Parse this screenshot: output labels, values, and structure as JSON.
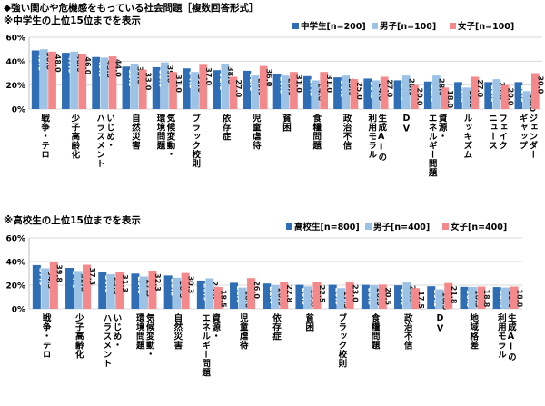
{
  "title": "◆強い関心や危機感をもっている社会問題［複数回答形式］",
  "colors": {
    "total": "#2f6eb5",
    "male": "#9cc3e6",
    "female": "#f4898c"
  },
  "chart_data": [
    {
      "type": "bar",
      "subtitle": "※中学生の上位15位までを表示",
      "categories": [
        "戦争・テロ",
        "少子高齢化",
        "いじめ・ハラスメント",
        "自然災害",
        "気候変動・環境問題",
        "ブラック校則",
        "依存症",
        "児童虐待",
        "貧困",
        "食糧問題",
        "政治不信",
        "生成AIの利用モラル",
        "DV",
        "資源・エネルギー問題",
        "ルッキズム",
        "フェイクニュース",
        "ジェンダーギャップ"
      ],
      "category_lines": [
        [
          "戦争・テロ"
        ],
        [
          "少子高齢化"
        ],
        [
          "いじめ・",
          "ハラスメント"
        ],
        [
          "自然災害"
        ],
        [
          "気候変動・",
          "環境問題"
        ],
        [
          "ブラック校則"
        ],
        [
          "依存症"
        ],
        [
          "児童虐待"
        ],
        [
          "貧困"
        ],
        [
          "食糧問題"
        ],
        [
          "政治不信"
        ],
        [
          "生成AIの",
          "利用モラル"
        ],
        [
          "DV"
        ],
        [
          "資源・",
          "エネルギー問題"
        ],
        [
          "ルッキズム"
        ],
        [
          "フェイク",
          "ニュース"
        ],
        [
          "ジェンダー",
          "ギャップ"
        ]
      ],
      "series": [
        {
          "name": "中学生[n=200]",
          "values": [
            49.0,
            47.0,
            43.5,
            35.5,
            35.0,
            34.0,
            32.5,
            32.0,
            29.5,
            27.5,
            26.5,
            25.5,
            24.0,
            23.0,
            22.5,
            22.5,
            22.5
          ]
        },
        {
          "name": "男子[n=100]",
          "values": [
            50.0,
            48.0,
            43.0,
            38.0,
            39.0,
            31.0,
            38.0,
            28.0,
            28.0,
            24.0,
            28.0,
            24.0,
            28.0,
            28.0,
            18.0,
            25.0,
            15.0
          ]
        },
        {
          "name": "女子[n=100]",
          "values": [
            48.0,
            46.0,
            44.0,
            33.0,
            31.0,
            37.0,
            27.0,
            36.0,
            31.0,
            31.0,
            25.0,
            27.0,
            20.0,
            18.0,
            27.0,
            20.0,
            30.0
          ]
        }
      ],
      "ylim": [
        0,
        60
      ],
      "yticks": [
        "0%",
        "20%",
        "40%",
        "60%"
      ],
      "legend": "top-right"
    },
    {
      "type": "bar",
      "subtitle": "※高校生の上位15位までを表示",
      "categories": [
        "戦争・テロ",
        "少子高齢化",
        "いじめ・ハラスメント",
        "気候変動・環境問題",
        "自然災害",
        "資源・エネルギー問題",
        "児童虐待",
        "依存症",
        "貧困",
        "ブラック校則",
        "食糧問題",
        "政治不信",
        "DV",
        "地域格差",
        "生成AIの利用モラル"
      ],
      "category_lines": [
        [
          "戦争・テロ"
        ],
        [
          "少子高齢化"
        ],
        [
          "いじめ・",
          "ハラスメント"
        ],
        [
          "気候変動・",
          "環境問題"
        ],
        [
          "自然災害"
        ],
        [
          "資源・",
          "エネルギー問題"
        ],
        [
          "児童虐待"
        ],
        [
          "依存症"
        ],
        [
          "貧困"
        ],
        [
          "ブラック校則"
        ],
        [
          "食糧問題"
        ],
        [
          "政治不信"
        ],
        [
          "DV"
        ],
        [
          "地域格差"
        ],
        [
          "生成AIの",
          "利用モラル"
        ]
      ],
      "series": [
        {
          "name": "高校生[n=800]",
          "values": [
            37.0,
            34.6,
            30.8,
            29.8,
            28.2,
            23.9,
            22.0,
            21.4,
            20.3,
            20.3,
            20.3,
            19.9,
            19.1,
            18.6,
            18.4
          ]
        },
        {
          "name": "男子[n=400]",
          "values": [
            34.3,
            32.0,
            29.3,
            27.3,
            26.3,
            25.8,
            18.0,
            20.0,
            19.0,
            17.5,
            20.0,
            22.3,
            16.5,
            18.5,
            18.0
          ]
        },
        {
          "name": "女子[n=400]",
          "values": [
            39.8,
            37.3,
            31.3,
            32.3,
            30.3,
            18.5,
            26.0,
            22.8,
            22.5,
            23.0,
            20.5,
            17.5,
            21.8,
            18.8,
            18.8
          ]
        }
      ],
      "ylim": [
        0,
        60
      ],
      "yticks": [
        "0%",
        "20%",
        "40%",
        "60%"
      ],
      "legend": "top-right"
    }
  ]
}
